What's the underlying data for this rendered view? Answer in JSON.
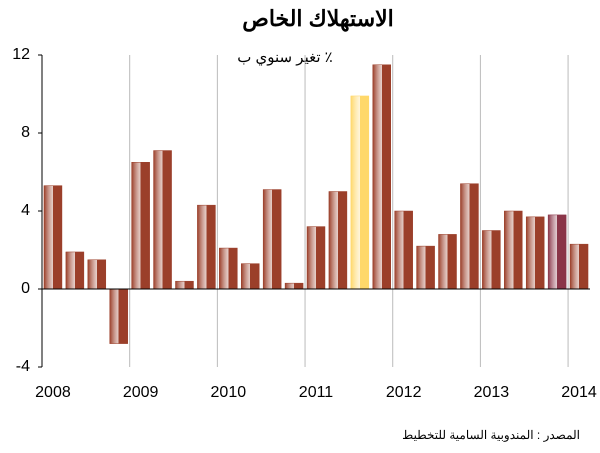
{
  "chart_data": {
    "type": "bar",
    "title": "الاستهلاك الخاص",
    "subtitle": "تغير سنوي ب ٪",
    "source": "المصدر : المندوبية السامية للتخطيط",
    "categories": [
      "2008",
      null,
      null,
      null,
      "2009",
      null,
      null,
      null,
      "2010",
      null,
      null,
      null,
      "2011",
      null,
      null,
      null,
      "2012",
      null,
      null,
      null,
      "2013",
      null,
      null,
      null,
      "2014"
    ],
    "values": [
      5.3,
      1.9,
      1.5,
      -2.8,
      6.5,
      7.1,
      0.4,
      4.3,
      2.1,
      1.3,
      5.1,
      0.3,
      3.2,
      5.0,
      9.9,
      11.5,
      4.0,
      2.2,
      2.8,
      5.4,
      3.0,
      4.0,
      3.7,
      3.8,
      2.3
    ],
    "colors": [
      "#9b3f2a",
      "#9b3f2a",
      "#9b3f2a",
      "#9b3f2a",
      "#9b3f2a",
      "#9b3f2a",
      "#9b3f2a",
      "#9b3f2a",
      "#9b3f2a",
      "#9b3f2a",
      "#9b3f2a",
      "#9b3f2a",
      "#9b3f2a",
      "#9b3f2a",
      "#ffd86a",
      "#9b3f2a",
      "#9b3f2a",
      "#9b3f2a",
      "#9b3f2a",
      "#9b3f2a",
      "#9b3f2a",
      "#9b3f2a",
      "#9b3f2a",
      "#8a3548",
      "#9b3f2a"
    ],
    "ylim": [
      -4,
      12
    ],
    "yticks": [
      -4,
      0,
      4,
      8,
      12
    ]
  }
}
